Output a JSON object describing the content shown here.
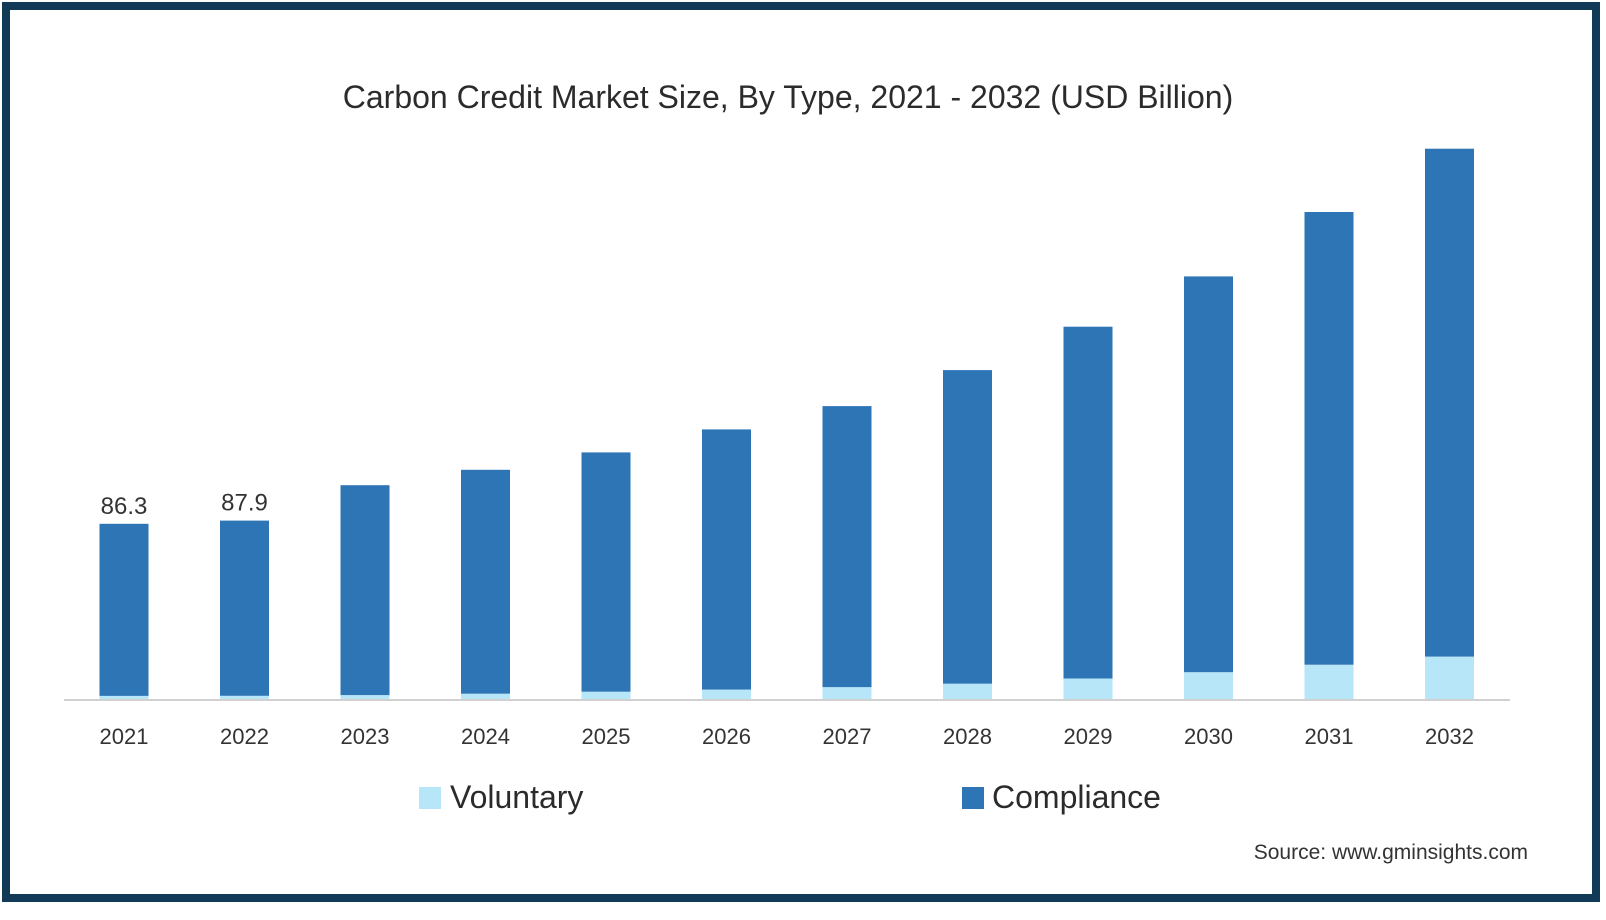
{
  "chart_data": {
    "type": "bar",
    "stacked": true,
    "title": "Carbon Credit Market Size, By Type, 2021 - 2032 (USD Billion)",
    "xlabel": "",
    "ylabel": "",
    "categories": [
      "2021",
      "2022",
      "2023",
      "2024",
      "2025",
      "2026",
      "2027",
      "2028",
      "2029",
      "2030",
      "2031",
      "2032"
    ],
    "series": [
      {
        "name": "Voluntary",
        "color": "#b6e6f7",
        "values": [
          1.5,
          1.6,
          1.9,
          2.6,
          3.6,
          4.6,
          5.9,
          7.5,
          10.1,
          13.2,
          16.9,
          20.9
        ]
      },
      {
        "name": "Compliance",
        "color": "#2e75b6",
        "values": [
          84.8,
          86.3,
          103.4,
          110.3,
          117.9,
          128.2,
          138.4,
          154.5,
          173.3,
          195.0,
          223.0,
          250.2
        ]
      }
    ],
    "totals_labels": [
      "86.3",
      "87.9"
    ],
    "ylim": [
      0,
      300
    ],
    "grid": false,
    "legend_position": "bottom",
    "source": "Source: www.gminsights.com"
  }
}
